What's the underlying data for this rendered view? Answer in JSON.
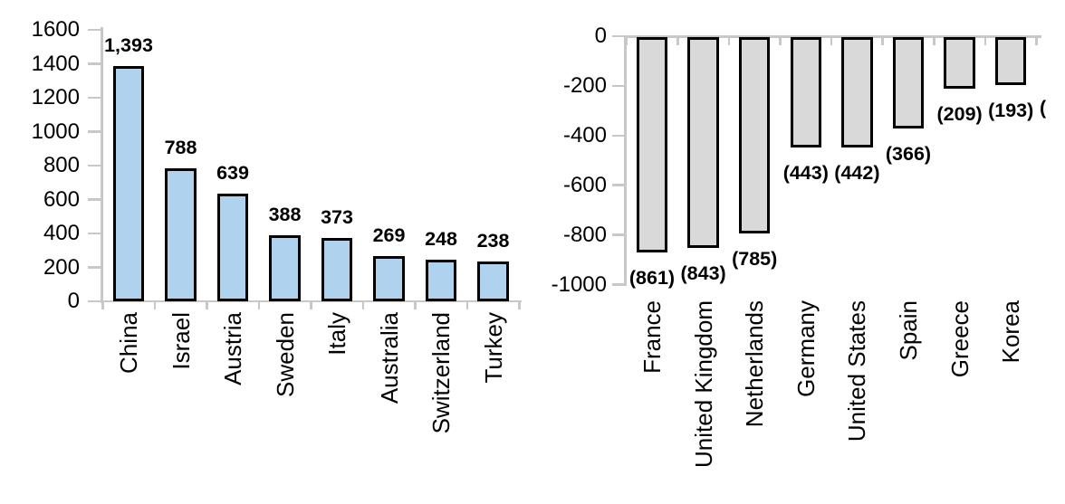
{
  "figure": {
    "background": "#FFFFFF",
    "axis_color": "#C8C8C8",
    "text_color": "#000000",
    "bar_border_color": "#000000"
  },
  "chart_data": [
    {
      "type": "bar",
      "title": "",
      "xlabel": "",
      "ylabel": "",
      "categories": [
        "China",
        "Israel",
        "Austria",
        "Sweden",
        "Italy",
        "Australia",
        "Switzerland",
        "Turkey"
      ],
      "values": [
        1393,
        788,
        639,
        388,
        373,
        269,
        248,
        238
      ],
      "data_labels": [
        "1,393",
        "788",
        "639",
        "388",
        "373",
        "269",
        "248",
        "238"
      ],
      "ylim": [
        0,
        1600
      ],
      "ytick_labels": [
        "1600",
        "1400",
        "1200",
        "1000",
        "800",
        "600",
        "400",
        "200",
        "0"
      ],
      "grid": false,
      "legend": "none",
      "bar_fill": "#AFD3EE",
      "data_label_position": "above"
    },
    {
      "type": "bar",
      "title": "",
      "xlabel": "",
      "ylabel": "",
      "categories": [
        "France",
        "United Kingdom",
        "Netherlands",
        "Germany",
        "United States",
        "Spain",
        "Greece",
        "Korea"
      ],
      "values": [
        -861,
        -843,
        -785,
        -443,
        -442,
        -366,
        -209,
        -193
      ],
      "data_labels": [
        "(861)",
        "(843)",
        "(785)",
        "(443)",
        "(442)",
        "(366)",
        "(209)",
        "(193)"
      ],
      "ylim": [
        -1000,
        0
      ],
      "ytick_labels": [
        "0",
        "-200",
        "-400",
        "-600",
        "-800",
        "-1000"
      ],
      "grid": false,
      "legend": "none",
      "bar_fill": "#D9D9D9",
      "data_label_position": "below",
      "clipped_label_at_right_edge": "("
    }
  ]
}
